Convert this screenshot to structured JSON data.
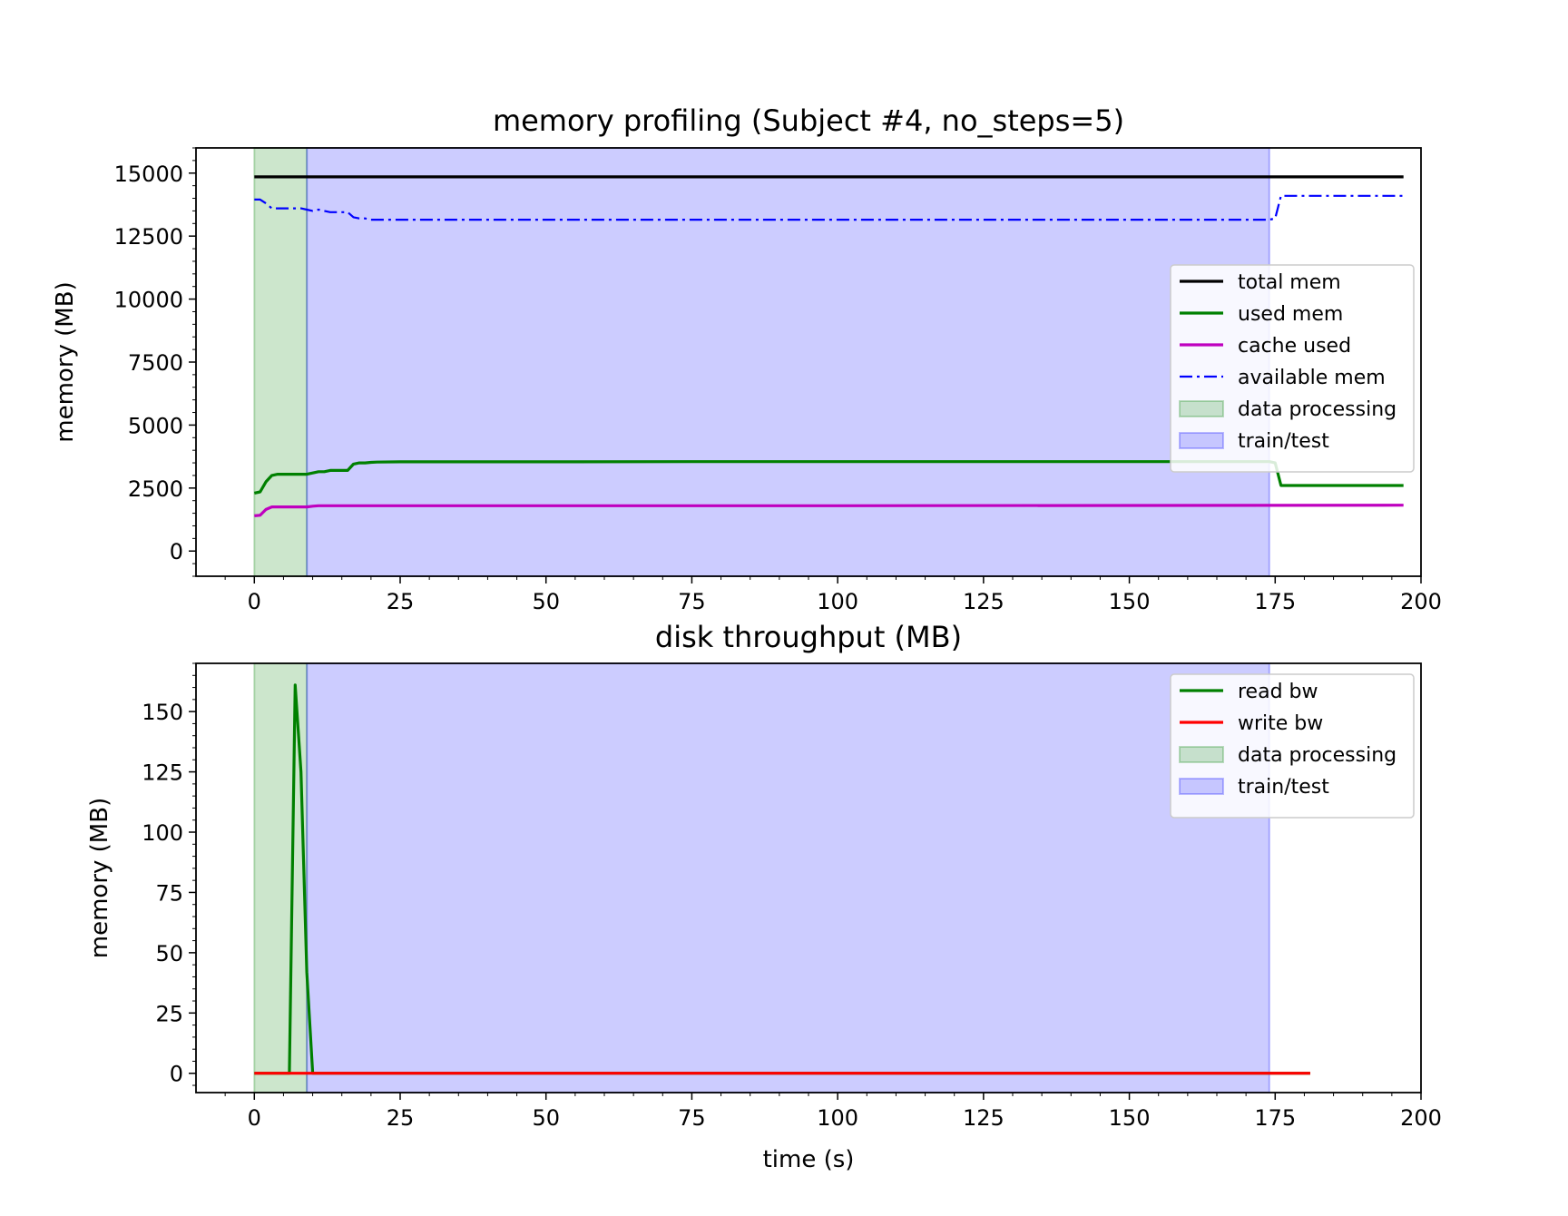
{
  "chart_data": [
    {
      "type": "line",
      "title": "memory profiling (Subject #4, no_steps=5)",
      "xlabel": "",
      "ylabel": "memory (MB)",
      "xlim": [
        -10,
        200
      ],
      "ylim": [
        -1000,
        16000
      ],
      "xticks": [
        0,
        25,
        50,
        75,
        100,
        125,
        150,
        175,
        200
      ],
      "yticks": [
        0,
        2500,
        5000,
        7500,
        10000,
        12500,
        15000
      ],
      "grid": false,
      "legend_position": "center-right",
      "spans": [
        {
          "name": "data processing",
          "x0": 0,
          "x1": 9,
          "color": "#008000"
        },
        {
          "name": "train/test",
          "x0": 9,
          "x1": 174,
          "color": "#0000ff"
        }
      ],
      "series": [
        {
          "name": "total mem",
          "color": "#000000",
          "style": "solid",
          "x": [
            0,
            197
          ],
          "y": [
            14850,
            14850
          ]
        },
        {
          "name": "used mem",
          "color": "#008000",
          "style": "solid",
          "x": [
            0,
            1,
            2,
            3,
            4,
            8,
            9,
            10,
            11,
            12,
            13,
            14,
            15,
            16,
            17,
            18,
            19,
            20,
            21,
            25,
            50,
            75,
            100,
            150,
            174,
            175,
            176,
            180,
            190,
            197
          ],
          "y": [
            2300,
            2350,
            2750,
            3000,
            3050,
            3050,
            3050,
            3100,
            3150,
            3150,
            3200,
            3200,
            3200,
            3200,
            3450,
            3500,
            3500,
            3520,
            3530,
            3540,
            3540,
            3550,
            3550,
            3550,
            3550,
            3500,
            2600,
            2600,
            2600,
            2600
          ]
        },
        {
          "name": "cache used",
          "color": "#bf00bf",
          "style": "solid",
          "x": [
            0,
            1,
            2,
            3,
            9,
            10,
            11,
            25,
            100,
            197
          ],
          "y": [
            1400,
            1420,
            1650,
            1750,
            1750,
            1780,
            1800,
            1800,
            1800,
            1820
          ]
        },
        {
          "name": "available mem",
          "color": "#0000ff",
          "style": "dashdot",
          "x": [
            0,
            1,
            2,
            3,
            8,
            9,
            10,
            11,
            12,
            13,
            14,
            15,
            16,
            17,
            18,
            19,
            20,
            25,
            50,
            100,
            174,
            175,
            176,
            180,
            197
          ],
          "y": [
            13950,
            13950,
            13800,
            13600,
            13600,
            13550,
            13500,
            13550,
            13500,
            13450,
            13450,
            13450,
            13450,
            13250,
            13200,
            13200,
            13150,
            13150,
            13150,
            13150,
            13150,
            13200,
            14100,
            14100,
            14100
          ]
        }
      ]
    },
    {
      "type": "line",
      "title": "disk throughput (MB)",
      "xlabel": "time (s)",
      "ylabel": "memory (MB)",
      "xlim": [
        -10,
        200
      ],
      "ylim": [
        -8,
        170
      ],
      "xticks": [
        0,
        25,
        50,
        75,
        100,
        125,
        150,
        175,
        200
      ],
      "yticks": [
        0,
        25,
        50,
        75,
        100,
        125,
        150
      ],
      "grid": false,
      "legend_position": "top-right",
      "spans": [
        {
          "name": "data processing",
          "x0": 0,
          "x1": 9,
          "color": "#008000"
        },
        {
          "name": "train/test",
          "x0": 9,
          "x1": 174,
          "color": "#0000ff"
        }
      ],
      "series": [
        {
          "name": "read bw",
          "color": "#008000",
          "style": "solid",
          "x": [
            0,
            6,
            7,
            8,
            9,
            10,
            11,
            181
          ],
          "y": [
            0,
            0,
            161,
            125,
            42,
            0,
            0,
            0
          ]
        },
        {
          "name": "write bw",
          "color": "#ff0000",
          "style": "solid",
          "x": [
            0,
            181
          ],
          "y": [
            0,
            0
          ]
        }
      ]
    }
  ]
}
